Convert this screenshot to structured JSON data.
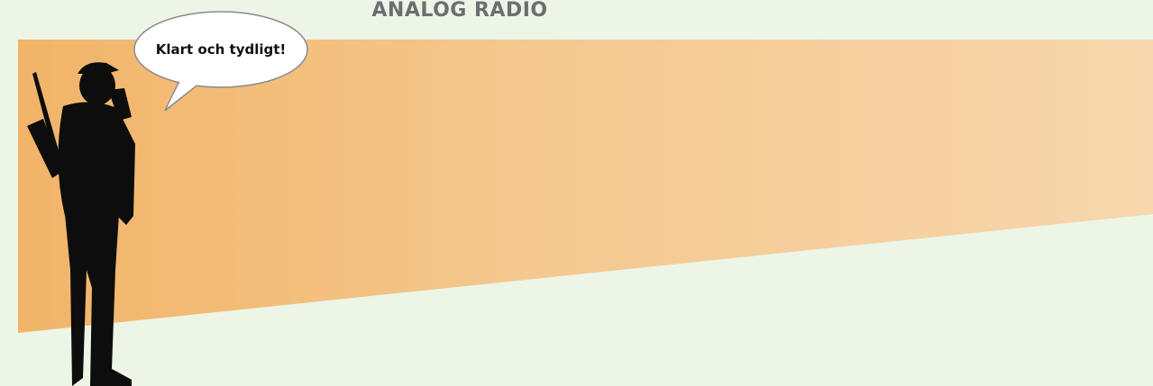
{
  "title": "ANALOG RADIO",
  "speech_bubble": "Klart och tydligt!"
}
